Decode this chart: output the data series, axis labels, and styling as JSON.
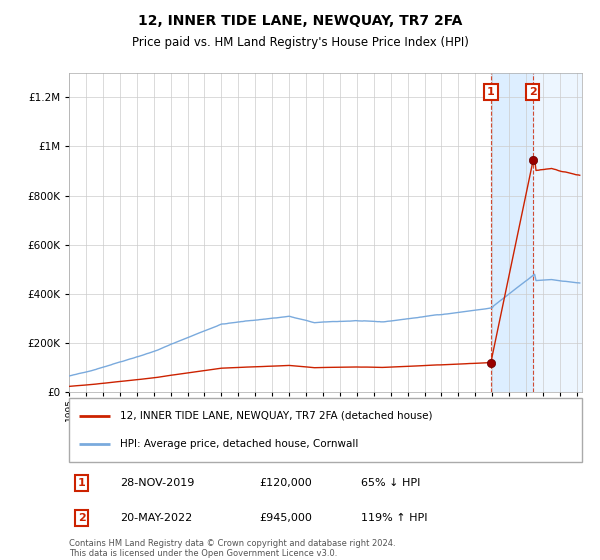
{
  "title": "12, INNER TIDE LANE, NEWQUAY, TR7 2FA",
  "subtitle": "Price paid vs. HM Land Registry's House Price Index (HPI)",
  "ylim": [
    0,
    1300000
  ],
  "yticks": [
    0,
    200000,
    400000,
    600000,
    800000,
    1000000,
    1200000
  ],
  "ytick_labels": [
    "£0",
    "£200K",
    "£400K",
    "£600K",
    "£800K",
    "£1M",
    "£1.2M"
  ],
  "hpi_color": "#7aaadd",
  "price_color": "#cc2200",
  "bg_color": "#ffffff",
  "grid_color": "#cccccc",
  "highlight_color": "#ddeeff",
  "hatch_color": "#c8d8e8",
  "transaction1_date": 2019.92,
  "transaction1_price": 120000,
  "transaction2_date": 2022.38,
  "transaction2_price": 945000,
  "xmin": 1995,
  "xmax": 2025.3,
  "footer": "Contains HM Land Registry data © Crown copyright and database right 2024.\nThis data is licensed under the Open Government Licence v3.0.",
  "legend1": "12, INNER TIDE LANE, NEWQUAY, TR7 2FA (detached house)",
  "legend2": "HPI: Average price, detached house, Cornwall",
  "table_row1_num": "1",
  "table_row1_date": "28-NOV-2019",
  "table_row1_price": "£120,000",
  "table_row1_hpi": "65% ↓ HPI",
  "table_row2_num": "2",
  "table_row2_date": "20-MAY-2022",
  "table_row2_price": "£945,000",
  "table_row2_hpi": "119% ↑ HPI"
}
